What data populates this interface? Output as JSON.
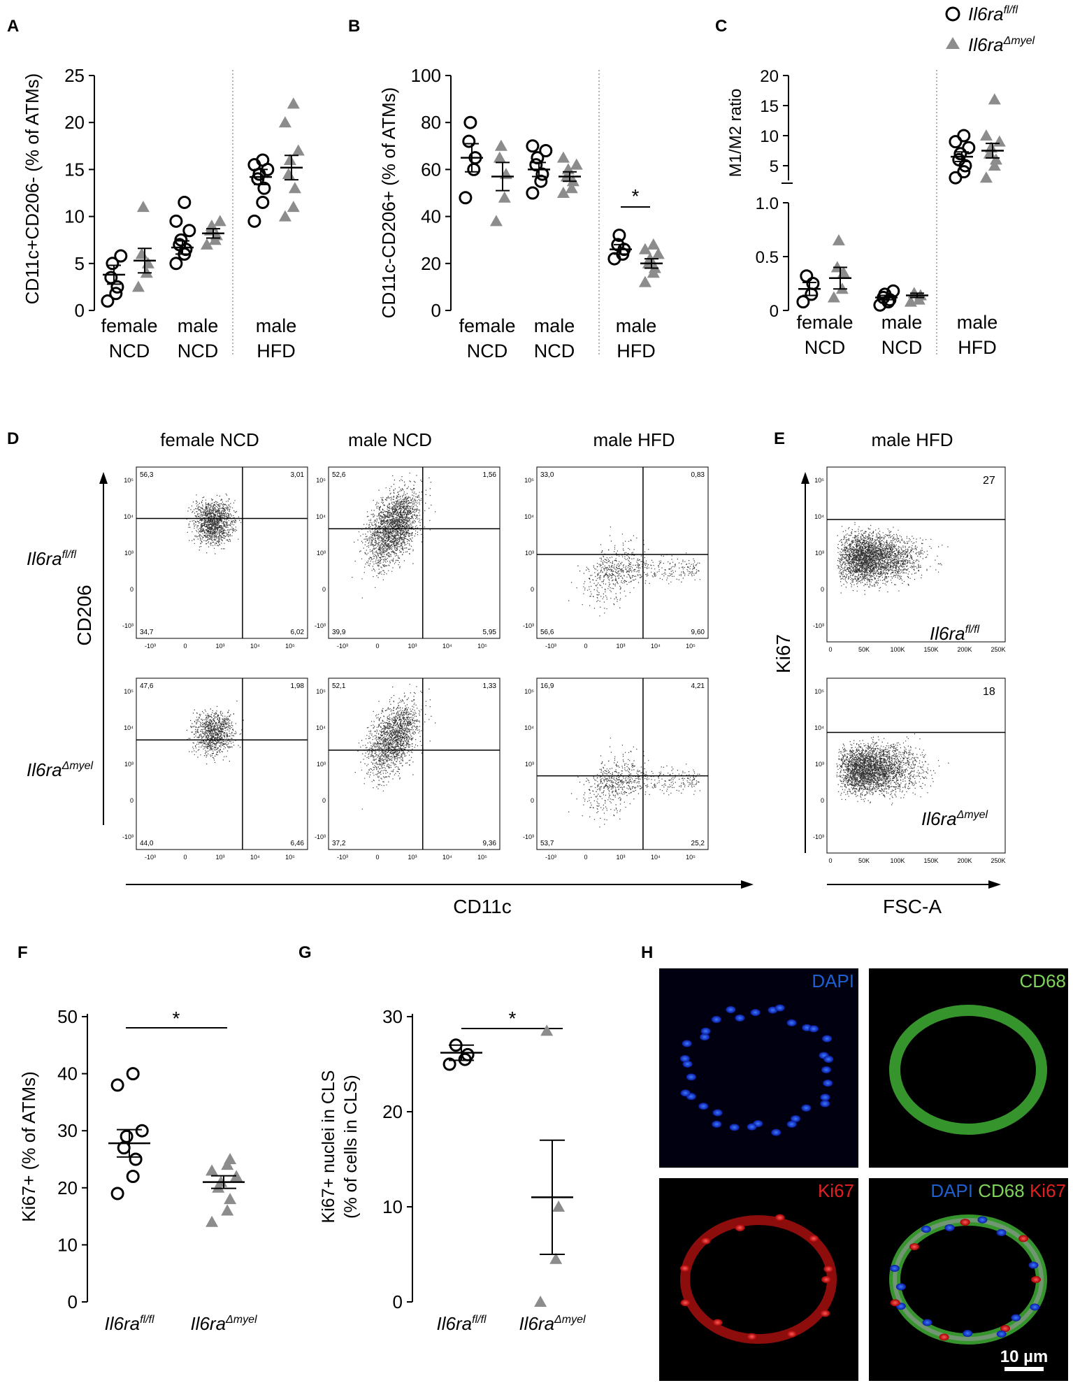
{
  "panel_letters": [
    "A",
    "B",
    "C",
    "D",
    "E",
    "F",
    "G",
    "H"
  ],
  "legend": {
    "fl": {
      "base": "Il6ra",
      "sup": "fl/fl"
    },
    "myel": {
      "base": "Il6ra",
      "sup": "Δmyel"
    }
  },
  "colors": {
    "gray": "#8c8c8c",
    "black": "#000000"
  },
  "chart_data": [
    {
      "panel": "A",
      "type": "scatter",
      "ylabel": "CD11c+CD206- (% of ATMs)",
      "ylim": [
        0,
        25
      ],
      "yticks": [
        "0",
        "5",
        "10",
        "15",
        "20",
        "25"
      ],
      "groups": [
        [
          "female",
          "NCD"
        ],
        [
          "male",
          "NCD"
        ],
        [
          "male",
          "HFD"
        ]
      ],
      "series": [
        {
          "genotype": "fl",
          "values": [
            [
              1,
              1.8,
              2.5,
              3.5,
              5.0,
              5.8
            ],
            [
              5.0,
              6.0,
              6.5,
              7.0,
              7.5,
              8.5,
              9.5,
              11.5
            ],
            [
              9.5,
              11.5,
              13.0,
              14.0,
              14.5,
              15.0,
              15.5,
              16.0
            ]
          ]
        },
        {
          "genotype": "myel",
          "values": [
            [
              2.5,
              4.0,
              5.0,
              6.0,
              11.0
            ],
            [
              7.0,
              7.5,
              8.0,
              8.5,
              9.0,
              9.5
            ],
            [
              10.0,
              11.0,
              13.0,
              14.5,
              16.0,
              17.0,
              20.0,
              22.0
            ]
          ]
        }
      ],
      "means": {
        "fl": [
          3.8,
          6.7,
          14.2
        ],
        "myel": [
          5.3,
          8.2,
          15.2
        ]
      },
      "sems": {
        "fl": [
          1.0,
          0.7,
          0.8
        ],
        "myel": [
          1.3,
          0.5,
          1.3
        ]
      }
    },
    {
      "panel": "B",
      "type": "scatter",
      "ylabel": "CD11c-CD206+ (% of ATMs)",
      "ylim": [
        0,
        100
      ],
      "yticks": [
        "0",
        "20",
        "40",
        "60",
        "80",
        "100"
      ],
      "groups": [
        [
          "female",
          "NCD"
        ],
        [
          "male",
          "NCD"
        ],
        [
          "male",
          "HFD"
        ]
      ],
      "series": [
        {
          "genotype": "fl",
          "values": [
            [
              48,
              60,
              65,
              72,
              80
            ],
            [
              50,
              55,
              58,
              62,
              65,
              68,
              70
            ],
            [
              22,
              24,
              26,
              28,
              32
            ]
          ]
        },
        {
          "genotype": "myel",
          "values": [
            [
              38,
              48,
              58,
              65,
              70
            ],
            [
              50,
              52,
              55,
              57,
              60,
              62,
              65
            ],
            [
              12,
              16,
              18,
              20,
              22,
              24,
              26,
              28
            ]
          ]
        }
      ],
      "means": {
        "fl": [
          65,
          60,
          26
        ],
        "myel": [
          57,
          57,
          20
        ]
      },
      "sems": {
        "fl": [
          6,
          3,
          2
        ],
        "myel": [
          6,
          2,
          2
        ]
      },
      "significance": "*"
    },
    {
      "panel": "C",
      "type": "scatter",
      "ylabel": "M1/M2 ratio",
      "yticks_lower": [
        "0",
        "0.5",
        "1.0"
      ],
      "yticks_upper": [
        "5",
        "10",
        "15",
        "20"
      ],
      "groups": [
        [
          "female",
          "NCD"
        ],
        [
          "male",
          "NCD"
        ],
        [
          "male",
          "HFD"
        ]
      ],
      "series": [
        {
          "genotype": "fl",
          "values": [
            [
              0.08,
              0.15,
              0.25,
              0.32
            ],
            [
              0.05,
              0.08,
              0.1,
              0.12,
              0.15,
              0.18
            ],
            [
              3,
              4,
              5,
              6,
              7,
              8,
              9,
              10
            ]
          ]
        },
        {
          "genotype": "myel",
          "values": [
            [
              0.12,
              0.2,
              0.35,
              0.4,
              0.65
            ],
            [
              0.08,
              0.1,
              0.14,
              0.16
            ],
            [
              3,
              5,
              6,
              7,
              8,
              9,
              10,
              16
            ]
          ]
        }
      ],
      "means": {
        "fl": [
          0.2,
          0.12,
          6.5
        ],
        "myel": [
          0.3,
          0.14,
          7.5
        ]
      },
      "sems": {
        "fl": [
          0.06,
          0.02,
          0.8
        ],
        "myel": [
          0.1,
          0.02,
          1.2
        ]
      }
    },
    {
      "panel": "F",
      "type": "scatter",
      "ylabel": "Ki67+ (% of ATMs)",
      "ylim": [
        0,
        50
      ],
      "yticks": [
        "0",
        "10",
        "20",
        "30",
        "40",
        "50"
      ],
      "series": [
        {
          "genotype": "fl",
          "values": [
            19,
            22,
            25,
            27,
            29,
            30,
            38,
            40
          ]
        },
        {
          "genotype": "myel",
          "values": [
            14,
            16,
            18,
            20,
            21,
            22,
            23,
            24,
            25
          ]
        }
      ],
      "means": {
        "fl": 27.8,
        "myel": 21
      },
      "sems": {
        "fl": 2.4,
        "myel": 1.1
      },
      "significance": "*"
    },
    {
      "panel": "G",
      "type": "scatter",
      "ylabel_lines": [
        "Ki67+ nuclei in CLS",
        "(% of cells in CLS)"
      ],
      "ylim": [
        0,
        30
      ],
      "yticks": [
        "0",
        "10",
        "20",
        "30"
      ],
      "series": [
        {
          "genotype": "fl",
          "values": [
            25,
            25.5,
            26,
            27
          ]
        },
        {
          "genotype": "myel",
          "values": [
            0,
            4.5,
            10,
            28.5
          ]
        }
      ],
      "means": {
        "fl": 26.2,
        "myel": 11
      },
      "sems": {
        "fl": 0.8,
        "myel": 6
      },
      "significance": "*"
    }
  ],
  "flow": {
    "title": "CD206",
    "x_axis": "CD11c",
    "columns": [
      "female NCD",
      "male NCD",
      "male HFD"
    ],
    "x_ticks": [
      "-10³",
      "0",
      "10³",
      "10⁴",
      "10⁵"
    ],
    "y_ticks": [
      "10⁵",
      "10⁴",
      "10³",
      "0",
      "-10³"
    ],
    "plots": [
      {
        "q": [
          "56,3",
          "3,01",
          "34,7",
          "6,02"
        ]
      },
      {
        "q": [
          "52,6",
          "1,56",
          "39,9",
          "5,95"
        ]
      },
      {
        "q": [
          "33,0",
          "0,83",
          "56,6",
          "9,60"
        ]
      },
      {
        "q": [
          "47,6",
          "1,98",
          "44,0",
          "6,46"
        ]
      },
      {
        "q": [
          "52,1",
          "1,33",
          "37,2",
          "9,36"
        ]
      },
      {
        "q": [
          "16,9",
          "4,21",
          "53,7",
          "25,2"
        ]
      }
    ]
  },
  "ki67_flow": {
    "title": "male HFD",
    "y_axis": "Ki67",
    "x_axis": "FSC-A",
    "x_ticks": [
      "0",
      "50K",
      "100K",
      "150K",
      "200K",
      "250K"
    ],
    "values": [
      "27",
      "18"
    ]
  },
  "micrographs": {
    "labels": [
      "DAPI",
      "CD68",
      "Ki67"
    ],
    "scale": "10 µm",
    "colors": {
      "DAPI": "#1e5fd0",
      "CD68": "#7fd35a",
      "Ki67": "#e02020"
    }
  }
}
